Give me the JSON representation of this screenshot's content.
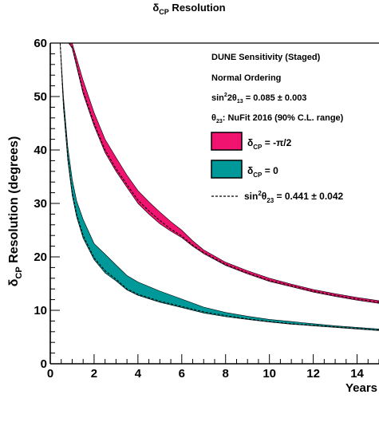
{
  "chart_data": {
    "type": "area",
    "title": "δ_CP Resolution",
    "title_main": "δ",
    "title_sub": "CP",
    "title_rest": " Resolution",
    "xlabel": "Years",
    "ylabel_main": "δ",
    "ylabel_sub": "CP",
    "ylabel_rest": " Resolution (degrees)",
    "xlim": [
      0,
      15
    ],
    "ylim": [
      0,
      60
    ],
    "xticks": [
      0,
      2,
      4,
      6,
      8,
      10,
      12,
      14
    ],
    "yticks": [
      0,
      10,
      20,
      30,
      40,
      50,
      60
    ],
    "grid": false,
    "annotations": {
      "line1": "DUNE Sensitivity (Staged)",
      "line2": "Normal Ordering",
      "line3_a": "sin",
      "line3_sup": "2",
      "line3_b": "2θ",
      "line3_sub": "13",
      "line3_c": " = 0.085 ± 0.003",
      "line4_a": "θ",
      "line4_sub": "23",
      "line4_b": ": NuFit 2016 (90% C.L. range)"
    },
    "legend_position": "top-right",
    "series": [
      {
        "label_main": "δ",
        "label_sub": "CP",
        "label_rest": " = -π/2",
        "color": "#f0136f",
        "x": [
          0.85,
          1.0,
          1.5,
          2.0,
          2.5,
          3.0,
          3.5,
          4.0,
          4.5,
          5.0,
          5.5,
          6.0,
          6.5,
          7.0,
          8.0,
          9.0,
          10.0,
          11.0,
          12.0,
          13.0,
          14.0,
          15.0
        ],
        "lower": [
          60.0,
          59.0,
          50.5,
          44.5,
          39.5,
          36.0,
          33.0,
          30.0,
          28.0,
          26.2,
          24.8,
          23.6,
          22.0,
          20.6,
          18.4,
          16.8,
          15.4,
          14.4,
          13.4,
          12.6,
          11.9,
          11.3
        ],
        "upper": [
          60.0,
          60.0,
          53.0,
          47.0,
          42.0,
          38.6,
          35.3,
          32.4,
          30.3,
          28.4,
          26.6,
          25.0,
          23.0,
          21.3,
          19.0,
          17.4,
          16.0,
          14.9,
          13.9,
          13.1,
          12.4,
          11.8
        ],
        "central": [
          60.0,
          59.2,
          51.0,
          45.0,
          40.0,
          36.5,
          33.5,
          30.6,
          28.6,
          26.8,
          25.2,
          23.9,
          22.2,
          20.8,
          18.6,
          17.0,
          15.6,
          14.6,
          13.6,
          12.8,
          12.1,
          11.5
        ]
      },
      {
        "label_main": "δ",
        "label_sub": "CP",
        "label_rest": " = 0",
        "color": "#009999",
        "x": [
          0.45,
          0.6,
          0.8,
          1.0,
          1.2,
          1.5,
          2.0,
          2.5,
          3.0,
          3.5,
          4.0,
          5.0,
          6.0,
          7.0,
          8.0,
          9.0,
          10.0,
          11.0,
          12.0,
          13.0,
          14.0,
          15.0
        ],
        "lower": [
          60.0,
          48.0,
          38.0,
          31.5,
          27.5,
          23.5,
          19.5,
          17.0,
          15.5,
          13.8,
          12.8,
          11.5,
          10.5,
          9.5,
          8.8,
          8.3,
          7.8,
          7.4,
          7.1,
          6.8,
          6.5,
          6.2
        ],
        "upper": [
          60.0,
          50.0,
          40.5,
          34.5,
          30.5,
          27.0,
          22.5,
          20.5,
          18.5,
          16.5,
          15.3,
          13.6,
          12.1,
          10.6,
          9.6,
          8.9,
          8.3,
          7.9,
          7.5,
          7.1,
          6.8,
          6.5
        ],
        "central": [
          60.0,
          48.6,
          38.6,
          32.0,
          28.0,
          24.0,
          19.8,
          17.4,
          15.8,
          14.0,
          13.0,
          11.7,
          10.7,
          9.7,
          9.0,
          8.4,
          7.9,
          7.5,
          7.2,
          6.9,
          6.6,
          6.3
        ]
      }
    ],
    "dashed_legend_a": "sin",
    "dashed_legend_sup": "2",
    "dashed_legend_b": "θ",
    "dashed_legend_sub": "23",
    "dashed_legend_c": " = 0.441 ± 0.042"
  }
}
